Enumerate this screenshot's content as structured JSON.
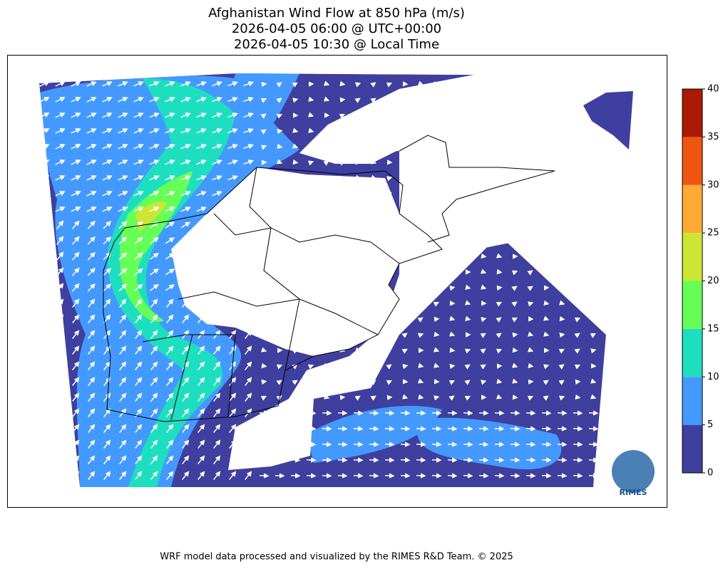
{
  "title": [
    "Afghanistan Wind Flow at 850 hPa (m/s)",
    "2026-04-05 06:00 @ UTC+00:00",
    "2026-04-05 10:30 @ Local Time"
  ],
  "colorbar": {
    "bounds": [
      0,
      5,
      10,
      15,
      20,
      25,
      30,
      35,
      40
    ],
    "colors": [
      "#3f3f9f",
      "#4499ff",
      "#1ddfc0",
      "#66ff55",
      "#cce633",
      "#ffaa33",
      "#ee5511",
      "#aa1a00"
    ]
  },
  "logo": "RIMES",
  "footer": "WRF model data processed and visualized by the RIMES R&D Team. © 2025"
}
